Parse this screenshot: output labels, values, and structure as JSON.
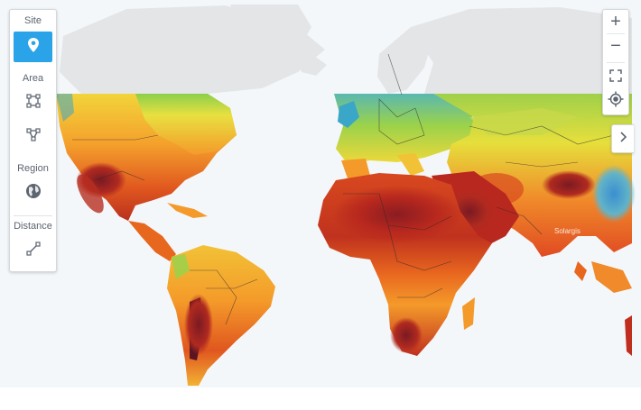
{
  "toolbar": {
    "site_label": "Site",
    "area_label": "Area",
    "region_label": "Region",
    "distance_label": "Distance",
    "site_icon": "location-pin-icon",
    "area_icon": "polygon-area-icon",
    "area_nodes_icon": "node-tree-icon",
    "region_icon": "globe-icon",
    "distance_icon": "ruler-line-icon",
    "active_color": "#2aa3e8"
  },
  "map_controls": {
    "zoom_in": "+",
    "zoom_out": "−",
    "fullscreen_icon": "fullscreen-icon",
    "locate_icon": "crosshair-icon",
    "expand_icon": "chevron-right-icon"
  },
  "attribution": "Solargis",
  "colors": {
    "ocean": "#f4f7fa",
    "no_data_land": "#e2e4e6",
    "low": "#3aa6c8",
    "mid_low": "#8ccf4a",
    "mid": "#f2e23a",
    "mid_high": "#f49a2a",
    "high": "#d63a1f",
    "very_high": "#7a1a22"
  }
}
